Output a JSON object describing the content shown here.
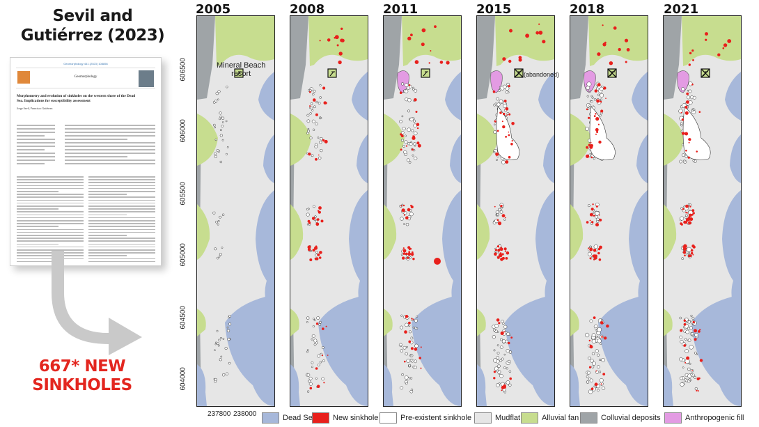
{
  "left": {
    "title_line1": "Sevil and",
    "title_line2": "Gutiérrez (2023)",
    "paper": {
      "journal_line": "Geomorphology 441 (2023) 108856",
      "journal_name": "Geomorphology",
      "title": "Morphometry and evolution of sinkholes on the western shore of the Dead Sea. Implications for susceptibility assessment",
      "authors": "Jorge Sevil, Francisco Gutiérrez"
    },
    "new_sinkholes_line1": "667* NEW",
    "new_sinkholes_line2": "SINKHOLES"
  },
  "panels": [
    {
      "year": "2005"
    },
    {
      "year": "2008"
    },
    {
      "year": "2011"
    },
    {
      "year": "2015"
    },
    {
      "year": "2018"
    },
    {
      "year": "2021"
    }
  ],
  "annotations": {
    "resort_line1": "Mineral Beach",
    "resort_line2": "resort",
    "abandoned": "(abandoned)"
  },
  "axes": {
    "y_ticks": [
      "606500",
      "606000",
      "605500",
      "605000",
      "604500",
      "604000"
    ],
    "x_ticks": [
      "237800",
      "238000"
    ]
  },
  "legend": [
    {
      "label": "Dead Sea",
      "color": "#a7b8da"
    },
    {
      "label": "New sinkhole",
      "color": "#e8201c"
    },
    {
      "label": "Pre-existent sinkhole",
      "color": "#ffffff"
    },
    {
      "label": "Mudflat",
      "color": "#e6e6e6"
    },
    {
      "label": "Alluvial fan",
      "color": "#c7dd8f"
    },
    {
      "label": "Colluvial deposits",
      "color": "#9fa4a7"
    },
    {
      "label": "Anthropogenic fill",
      "color": "#e39be3"
    }
  ]
}
